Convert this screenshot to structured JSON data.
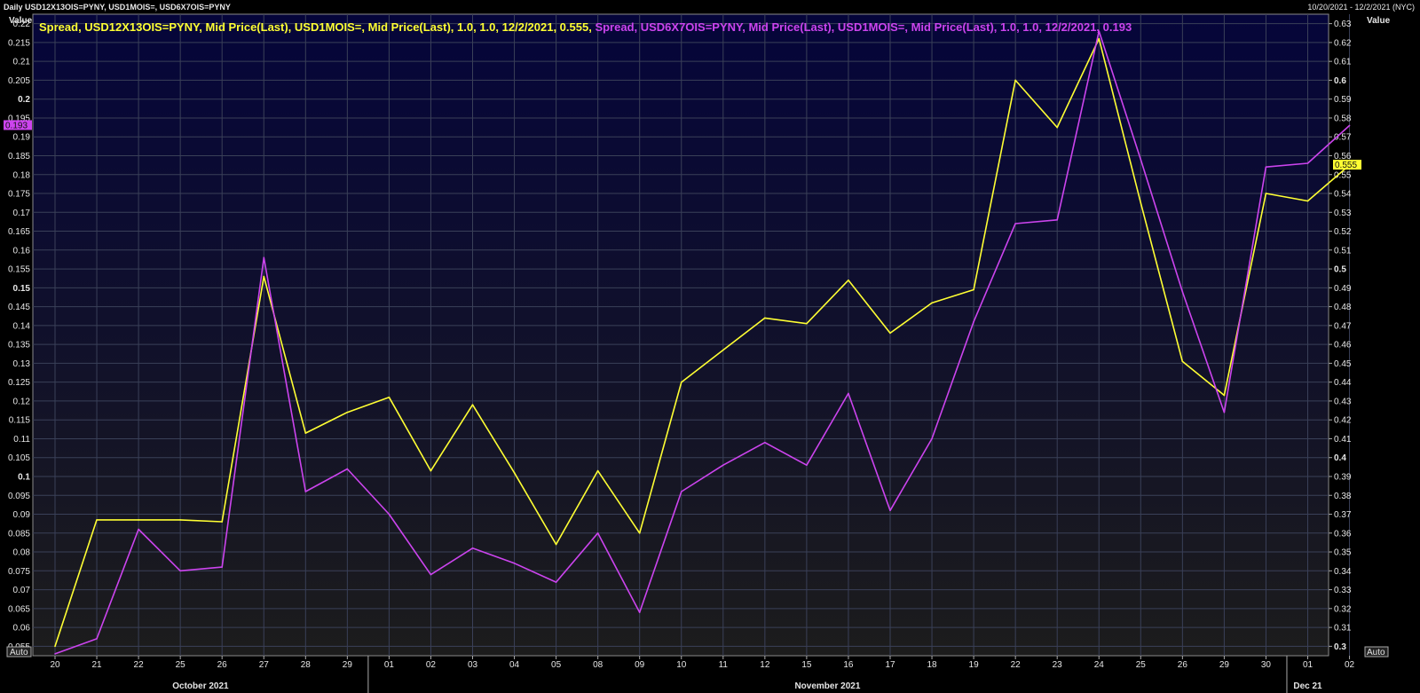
{
  "header": {
    "title": "Daily USD12X13OIS=PYNY, USD1MOIS=, USD6X7OIS=PYNY",
    "range": "10/20/2021 - 12/2/2021 (NYC)"
  },
  "chart_data": {
    "type": "line",
    "x": [
      "20",
      "21",
      "22",
      "25",
      "26",
      "27",
      "28",
      "29",
      "01",
      "02",
      "03",
      "04",
      "05",
      "08",
      "09",
      "10",
      "11",
      "12",
      "15",
      "16",
      "17",
      "18",
      "19",
      "22",
      "23",
      "24",
      "25",
      "26",
      "29",
      "30",
      "01",
      "02"
    ],
    "months": [
      {
        "label": "October 2021",
        "start": 0,
        "end": 7
      },
      {
        "label": "November 2021",
        "start": 8,
        "end": 29
      },
      {
        "label": "Dec 21",
        "start": 30,
        "end": 31
      }
    ],
    "left_axis": {
      "label": "Value",
      "min": 0.0525,
      "max": 0.2225,
      "step": 0.005
    },
    "right_axis": {
      "label": "Value",
      "min": 0.295,
      "max": 0.635,
      "step": 0.01
    },
    "axis_button": "Auto",
    "series": [
      {
        "name": "Spread, USD12X13OIS=PYNY, Mid Price(Last), USD1MOIS=, Mid Price(Last),  1.0, 1.0, 12/2/2021, 0.555,",
        "axis": "right",
        "color": "#ffff33",
        "last_value": "0.555",
        "values": [
          0.3,
          0.367,
          0.367,
          0.367,
          0.366,
          0.496,
          0.413,
          0.424,
          0.432,
          0.393,
          0.428,
          0.392,
          0.354,
          0.393,
          0.36,
          0.44,
          0.457,
          0.474,
          0.471,
          0.494,
          0.466,
          0.482,
          0.489,
          0.6,
          0.575,
          0.622,
          0.535,
          0.451,
          0.433,
          0.54,
          0.536,
          0.555
        ]
      },
      {
        "name": "Spread, USD6X7OIS=PYNY, Mid Price(Last), USD1MOIS=, Mid Price(Last),  1.0, 1.0, 12/2/2021, 0.193",
        "axis": "left",
        "color": "#cc44ee",
        "last_value": "0.193",
        "values": [
          0.053,
          0.057,
          0.086,
          0.075,
          0.076,
          0.158,
          0.096,
          0.102,
          0.09,
          0.074,
          0.081,
          0.077,
          0.072,
          0.085,
          0.064,
          0.096,
          0.103,
          0.109,
          0.103,
          0.122,
          0.091,
          0.11,
          0.141,
          0.167,
          0.168,
          0.218,
          0.184,
          0.149,
          0.117,
          0.182,
          0.183,
          0.193
        ]
      }
    ]
  }
}
